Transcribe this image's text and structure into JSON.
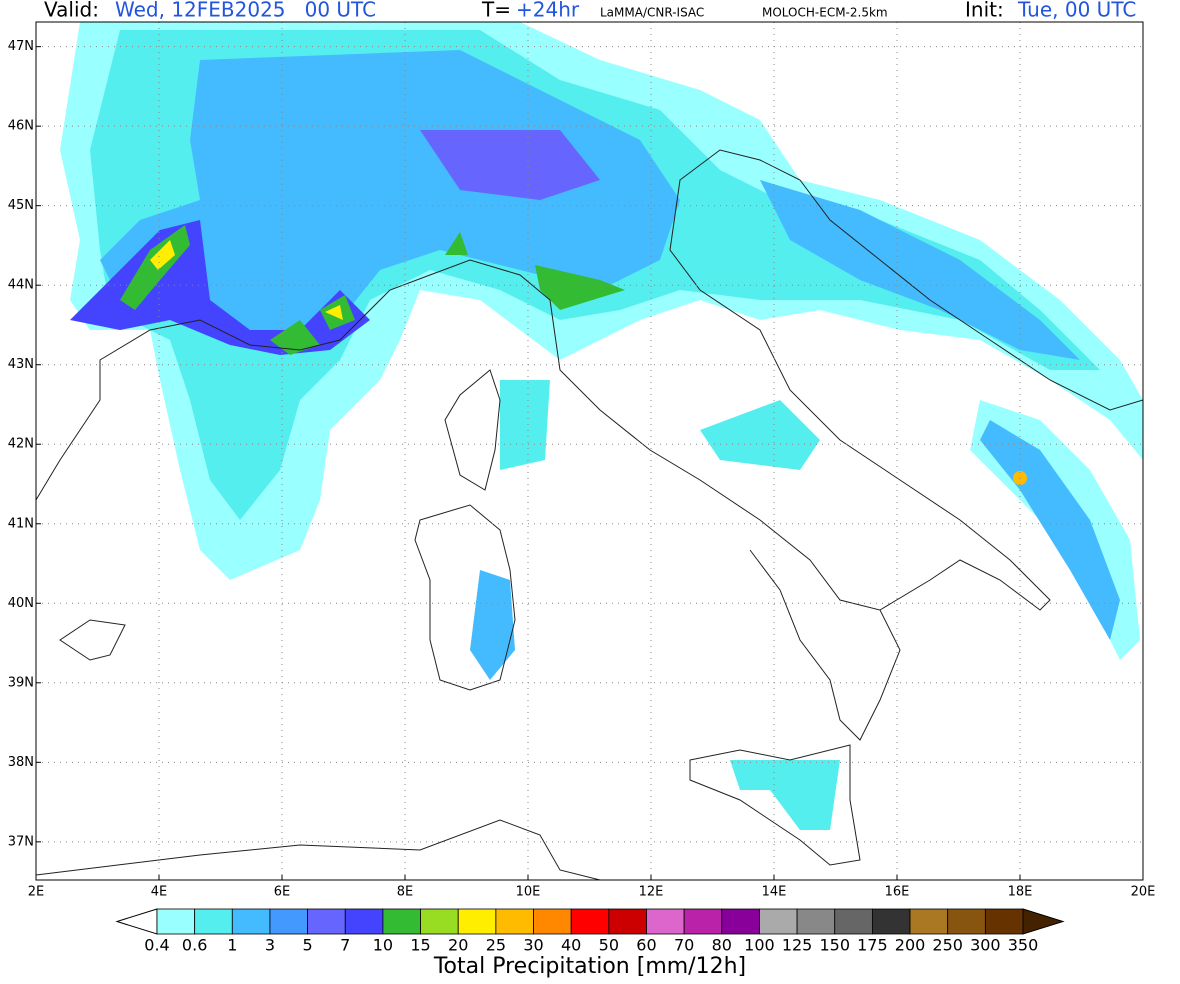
{
  "header": {
    "valid_label": "Valid:",
    "valid": "Wed, 12FEB2025   00 UTC",
    "t_label": "T=",
    "t": "+24hr",
    "source": "LaMMA/CNR-ISAC",
    "model": "MOLOCH-ECM-2.5km",
    "init_label": "Init:",
    "init": "Tue, 00 UTC"
  },
  "map": {
    "lon_lim": [
      2,
      20
    ],
    "lat_lim": [
      36.52,
      47.31
    ],
    "lon_ticks": [
      {
        "value": 2,
        "label": "2E"
      },
      {
        "value": 4,
        "label": "4E"
      },
      {
        "value": 6,
        "label": "6E"
      },
      {
        "value": 8,
        "label": "8E"
      },
      {
        "value": 10,
        "label": "10E"
      },
      {
        "value": 12,
        "label": "12E"
      },
      {
        "value": 14,
        "label": "14E"
      },
      {
        "value": 16,
        "label": "16E"
      },
      {
        "value": 18,
        "label": "18E"
      },
      {
        "value": 20,
        "label": "20E"
      }
    ],
    "lat_ticks": [
      {
        "value": 37,
        "label": "37N"
      },
      {
        "value": 38,
        "label": "38N"
      },
      {
        "value": 39,
        "label": "39N"
      },
      {
        "value": 40,
        "label": "40N"
      },
      {
        "value": 41,
        "label": "41N"
      },
      {
        "value": 42,
        "label": "42N"
      },
      {
        "value": 43,
        "label": "43N"
      },
      {
        "value": 44,
        "label": "44N"
      },
      {
        "value": 45,
        "label": "45N"
      },
      {
        "value": 46,
        "label": "46N"
      },
      {
        "value": 47,
        "label": "47N"
      }
    ],
    "grid": true
  },
  "colorbar": {
    "title": "Total Precipitation [mm/12h]",
    "labels": [
      "0.4",
      "0.6",
      "1",
      "3",
      "5",
      "7",
      "10",
      "15",
      "20",
      "25",
      "30",
      "40",
      "50",
      "60",
      "70",
      "80",
      "100",
      "125",
      "150",
      "175",
      "200",
      "250",
      "300",
      "350"
    ],
    "under_color": "#ffffff",
    "colors": [
      "#99ffff",
      "#55eeee",
      "#44bbff",
      "#4499ff",
      "#6666ff",
      "#4444ff",
      "#33bb33",
      "#99dd22",
      "#ffee00",
      "#ffbb00",
      "#ff8800",
      "#ff0000",
      "#cc0000",
      "#dd66cc",
      "#bb22aa",
      "#880099",
      "#aaaaaa",
      "#888888",
      "#666666",
      "#333333",
      "#aa7722",
      "#885511",
      "#663300"
    ],
    "over_color": "#442200"
  }
}
